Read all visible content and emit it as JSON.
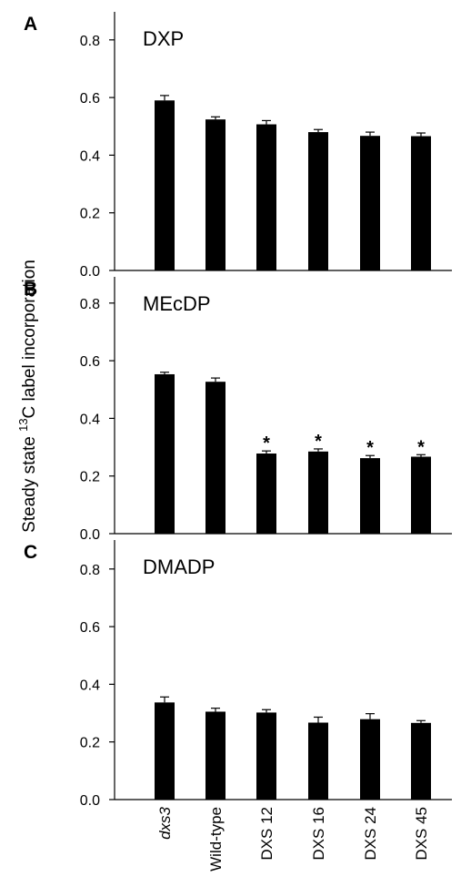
{
  "ylabel_prefix": "Steady state ",
  "ylabel_superscript": "13",
  "ylabel_suffix": "C label incorporation",
  "categories": [
    "dxs3",
    "Wild-type",
    "DXS 12",
    "DXS 16",
    "DXS 24",
    "DXS 45"
  ],
  "chart_data": [
    {
      "type": "bar",
      "panel_letter": "A",
      "title": "DXP",
      "ylim": [
        0,
        0.9
      ],
      "yticks": [
        0.0,
        0.2,
        0.4,
        0.6,
        0.8
      ],
      "ytick_labels": [
        "0.0",
        "0.2",
        "0.4",
        "0.6",
        "0.8"
      ],
      "categories": [
        "dxs3",
        "Wild-type",
        "DXS 12",
        "DXS 16",
        "DXS 24",
        "DXS 45"
      ],
      "values": [
        0.59,
        0.524,
        0.507,
        0.48,
        0.467,
        0.466
      ],
      "errors": [
        0.017,
        0.009,
        0.013,
        0.009,
        0.013,
        0.011
      ],
      "annotations": [
        "",
        "",
        "",
        "",
        "",
        ""
      ]
    },
    {
      "type": "bar",
      "panel_letter": "B",
      "title": "MEcDP",
      "ylim": [
        0,
        0.9
      ],
      "yticks": [
        0.0,
        0.2,
        0.4,
        0.6,
        0.8
      ],
      "ytick_labels": [
        "0.0",
        "0.2",
        "0.4",
        "0.6",
        "0.8"
      ],
      "categories": [
        "dxs3",
        "Wild-type",
        "DXS 12",
        "DXS 16",
        "DXS 24",
        "DXS 45"
      ],
      "values": [
        0.553,
        0.527,
        0.278,
        0.285,
        0.262,
        0.267
      ],
      "errors": [
        0.007,
        0.013,
        0.009,
        0.009,
        0.009,
        0.007
      ],
      "annotations": [
        "",
        "",
        "*",
        "*",
        "*",
        "*"
      ]
    },
    {
      "type": "bar",
      "panel_letter": "C",
      "title": "DMADP",
      "ylim": [
        0,
        0.9
      ],
      "yticks": [
        0.0,
        0.2,
        0.4,
        0.6,
        0.8
      ],
      "ytick_labels": [
        "0.0",
        "0.2",
        "0.4",
        "0.6",
        "0.8"
      ],
      "categories": [
        "dxs3",
        "Wild-type",
        "DXS 12",
        "DXS 16",
        "DXS 24",
        "DXS 45"
      ],
      "values": [
        0.337,
        0.305,
        0.302,
        0.267,
        0.279,
        0.266
      ],
      "errors": [
        0.019,
        0.012,
        0.01,
        0.019,
        0.019,
        0.008
      ],
      "annotations": [
        "",
        "",
        "",
        "",
        "",
        ""
      ]
    }
  ]
}
